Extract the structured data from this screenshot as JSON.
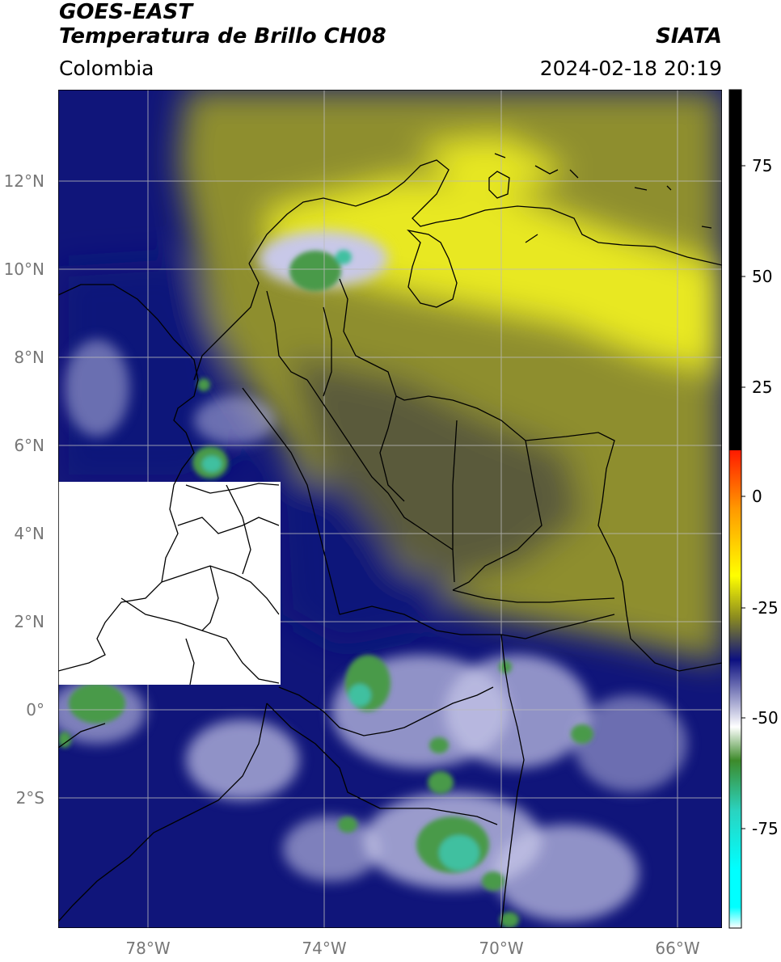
{
  "header": {
    "title_line1": "GOES-EAST",
    "title_line2": "Temperatura de Brillo CH08",
    "region": "Colombia",
    "agency": "SIATA",
    "timestamp": "2024-02-18 20:19"
  },
  "axes": {
    "lat_ticks": [
      "12°N",
      "10°N",
      "8°N",
      "6°N",
      "4°N",
      "2°N",
      "0°",
      "2°S"
    ],
    "lon_ticks": [
      "78°W",
      "74°W",
      "70°W",
      "66°W"
    ]
  },
  "colorbar": {
    "ticks": [
      "75",
      "50",
      "25",
      "0",
      "-25",
      "-50",
      "-75"
    ],
    "colors": {
      "black": "#000000",
      "red": "#ff1a00",
      "orange": "#ff9900",
      "yellow": "#ffff00",
      "olive": "#8a8a20",
      "navy": "#0c1080",
      "white": "#ffffff",
      "green": "#3d8a2a",
      "teal": "#2ad3c0",
      "cyan": "#00ffff"
    }
  },
  "map": {
    "colors": {
      "yellow_band": "#e8e820",
      "olive": "#8e8e2e",
      "dark_olive": "#5a5a3a",
      "navy": "#10157a",
      "blue_white": "#c8c8e8",
      "green_core": "#4a9a4a",
      "teal_core": "#40c0a0",
      "masked": "#ffffff"
    }
  }
}
